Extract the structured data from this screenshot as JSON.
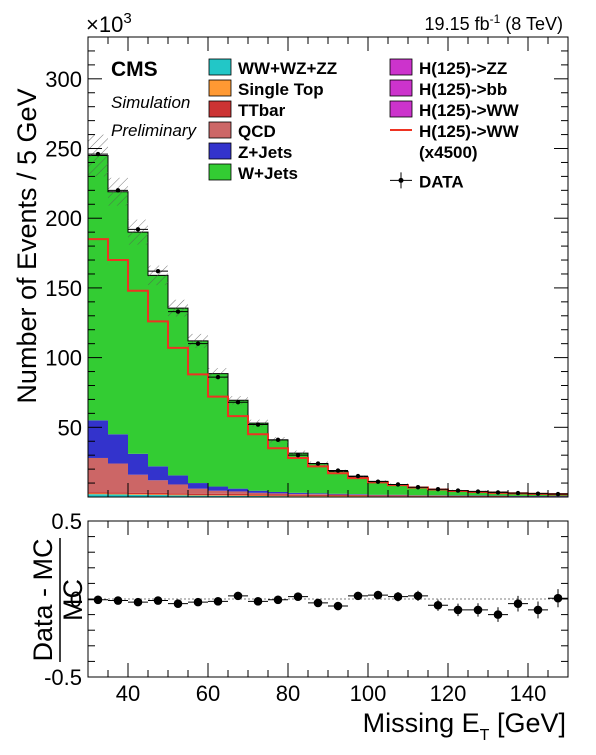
{
  "header": {
    "multiplier_base": "×10",
    "multiplier_exp": "3",
    "lumi_value": "19.15 fb",
    "lumi_exp": "-1",
    "lumi_energy": "(8 TeV)"
  },
  "labels": {
    "cms": "CMS",
    "simulation": "Simulation",
    "preliminary": "Preliminary"
  },
  "legend": [
    {
      "label": "WW+WZ+ZZ",
      "color": "#22c7c7",
      "kind": "box"
    },
    {
      "label": "Single Top",
      "color": "#ff9933",
      "kind": "box"
    },
    {
      "label": "TTbar",
      "color": "#cc3333",
      "kind": "box"
    },
    {
      "label": "QCD",
      "color": "#cc6666",
      "kind": "box"
    },
    {
      "label": "Z+Jets",
      "color": "#3333cc",
      "kind": "box"
    },
    {
      "label": "W+Jets",
      "color": "#33cc33",
      "kind": "box"
    },
    {
      "label": "H(125)->ZZ",
      "color": "#cc33cc",
      "kind": "box"
    },
    {
      "label": "H(125)->bb",
      "color": "#cc33cc",
      "kind": "box"
    },
    {
      "label": "H(125)->WW",
      "color": "#cc33cc",
      "kind": "box"
    },
    {
      "label": "H(125)->WW",
      "label2": "(x4500)",
      "color": "#ee3322",
      "kind": "line"
    },
    {
      "label": "DATA",
      "color": "#000000",
      "kind": "marker"
    }
  ],
  "chart_data": [
    {
      "type": "bar",
      "subtype": "stacked-histogram",
      "x_bin_edges": [
        30,
        35,
        40,
        45,
        50,
        55,
        60,
        65,
        70,
        75,
        80,
        85,
        90,
        95,
        100,
        105,
        110,
        115,
        120,
        125,
        130,
        135,
        140,
        145,
        150
      ],
      "xlim": [
        30,
        150
      ],
      "ylim": [
        0,
        330
      ],
      "yticks": [
        50,
        100,
        150,
        200,
        250,
        300
      ],
      "ylabel": "Number of Events / 5 GeV",
      "y_multiplier": "×10^3",
      "series": [
        {
          "name": "WW+WZ+ZZ",
          "color": "#22c7c7",
          "values": [
            2,
            1.8,
            1.6,
            1.4,
            1.2,
            1,
            0.9,
            0.8,
            0.7,
            0.6,
            0.5,
            0.45,
            0.4,
            0.35,
            0.3,
            0.28,
            0.25,
            0.22,
            0.2,
            0.18,
            0.16,
            0.14,
            0.12,
            0.1
          ]
        },
        {
          "name": "Single Top",
          "color": "#ff9933",
          "values": [
            0.5,
            0.5,
            0.5,
            0.5,
            0.5,
            0.4,
            0.4,
            0.4,
            0.4,
            0.3,
            0.3,
            0.3,
            0.3,
            0.3,
            0.2,
            0.2,
            0.2,
            0.2,
            0.2,
            0.2,
            0.2,
            0.1,
            0.1,
            0.1
          ]
        },
        {
          "name": "TTbar",
          "color": "#cc3333",
          "values": [
            1,
            1,
            1,
            1,
            1,
            1,
            1,
            1,
            0.9,
            0.9,
            0.8,
            0.8,
            0.7,
            0.7,
            0.6,
            0.6,
            0.5,
            0.5,
            0.4,
            0.4,
            0.4,
            0.3,
            0.3,
            0.3
          ]
        },
        {
          "name": "QCD",
          "color": "#cc6666",
          "values": [
            24.5,
            20.7,
            12.9,
            9.1,
            6.3,
            3.6,
            2.2,
            1.8,
            1.0,
            0.8,
            0.6,
            0.5,
            0.4,
            0.3,
            0.2,
            0.2,
            0.1,
            0.1,
            0.1,
            0.1,
            0.1,
            0.1,
            0.1,
            0.1
          ]
        },
        {
          "name": "Z+Jets",
          "color": "#3333cc",
          "values": [
            27,
            21,
            15,
            10,
            6.5,
            4,
            3,
            2,
            1.5,
            1,
            0.8,
            0.6,
            0.5,
            0.4,
            0.3,
            0.3,
            0.2,
            0.2,
            0.2,
            0.2,
            0.1,
            0.1,
            0.1,
            0.1
          ]
        },
        {
          "name": "W+Jets",
          "color": "#33cc33",
          "values": [
            190,
            174,
            159,
            137,
            120,
            102,
            81,
            63.4,
            48.5,
            37.4,
            28.5,
            21.3,
            16.1,
            12.3,
            9.6,
            7.4,
            5.5,
            4.4,
            3.6,
            3.0,
            2.6,
            2.2,
            1.9,
            1.7
          ]
        },
        {
          "name": "H(125)->ZZ",
          "color": "#cc33cc",
          "values": [
            0,
            0,
            0,
            0,
            0,
            0,
            0,
            0,
            0,
            0,
            0,
            0,
            0,
            0,
            0,
            0,
            0,
            0,
            0,
            0,
            0,
            0,
            0,
            0
          ]
        },
        {
          "name": "H(125)->bb",
          "color": "#cc33cc",
          "values": [
            0,
            0,
            0,
            0,
            0,
            0,
            0,
            0,
            0,
            0,
            0,
            0,
            0,
            0,
            0,
            0,
            0,
            0,
            0,
            0,
            0,
            0,
            0,
            0
          ]
        },
        {
          "name": "H(125)->WW",
          "color": "#cc33cc",
          "values": [
            0,
            0,
            0,
            0,
            0,
            0,
            0,
            0,
            0,
            0,
            0,
            0,
            0,
            0,
            0,
            0,
            0,
            0,
            0,
            0,
            0,
            0,
            0,
            0
          ]
        }
      ],
      "mc_uncertainty": [
        15,
        10,
        9,
        7,
        6,
        5,
        4,
        3,
        2.5,
        2,
        1.8,
        1.5,
        1.2,
        1,
        0.9,
        0.8,
        0.7,
        0.6,
        0.5,
        0.5,
        0.4,
        0.4,
        0.3,
        0.3
      ],
      "signal_line": {
        "name": "H(125)->WW (x4500)",
        "color": "#ee3322",
        "values": [
          185,
          170,
          148,
          126,
          107,
          88,
          72,
          58,
          45,
          35,
          28,
          22,
          17,
          13.5,
          10.5,
          8.5,
          6.8,
          5.4,
          4.3,
          3.6,
          3,
          2.6,
          2.2,
          1.9
        ]
      },
      "data": {
        "name": "DATA",
        "values": [
          246,
          220,
          192,
          162,
          133,
          110,
          86,
          68,
          52,
          41,
          30,
          24,
          19,
          15,
          11,
          9,
          7,
          5.6,
          4.6,
          3.9,
          3.3,
          2.8,
          2.4,
          2.1
        ]
      }
    },
    {
      "type": "scatter",
      "subtype": "ratio",
      "x": [
        32.5,
        37.5,
        42.5,
        47.5,
        52.5,
        57.5,
        62.5,
        67.5,
        72.5,
        77.5,
        82.5,
        87.5,
        92.5,
        97.5,
        102.5,
        107.5,
        112.5,
        117.5,
        122.5,
        127.5,
        132.5,
        137.5,
        142.5,
        147.5
      ],
      "y": [
        -0.005,
        -0.01,
        -0.02,
        -0.01,
        -0.03,
        -0.02,
        -0.015,
        0.02,
        -0.015,
        -0.005,
        0.015,
        -0.025,
        -0.045,
        0.02,
        0.025,
        0.015,
        0.02,
        -0.04,
        -0.07,
        -0.07,
        -0.1,
        -0.03,
        -0.07,
        0.005
      ],
      "yerr": [
        0.005,
        0.005,
        0.006,
        0.007,
        0.008,
        0.009,
        0.01,
        0.012,
        0.013,
        0.015,
        0.017,
        0.019,
        0.021,
        0.024,
        0.027,
        0.03,
        0.033,
        0.036,
        0.04,
        0.043,
        0.047,
        0.05,
        0.054,
        0.058
      ],
      "xlim": [
        30,
        150
      ],
      "ylim": [
        -0.5,
        0.5
      ],
      "xticks": [
        40,
        60,
        80,
        100,
        120,
        140
      ],
      "yticks": [
        -0.5,
        0,
        0.5
      ],
      "ylabel_num": "Data - MC",
      "ylabel_den": "MC",
      "xlabel": "Missing E",
      "xlabel_sub": "T",
      "xlabel_unit": "[GeV]"
    }
  ]
}
